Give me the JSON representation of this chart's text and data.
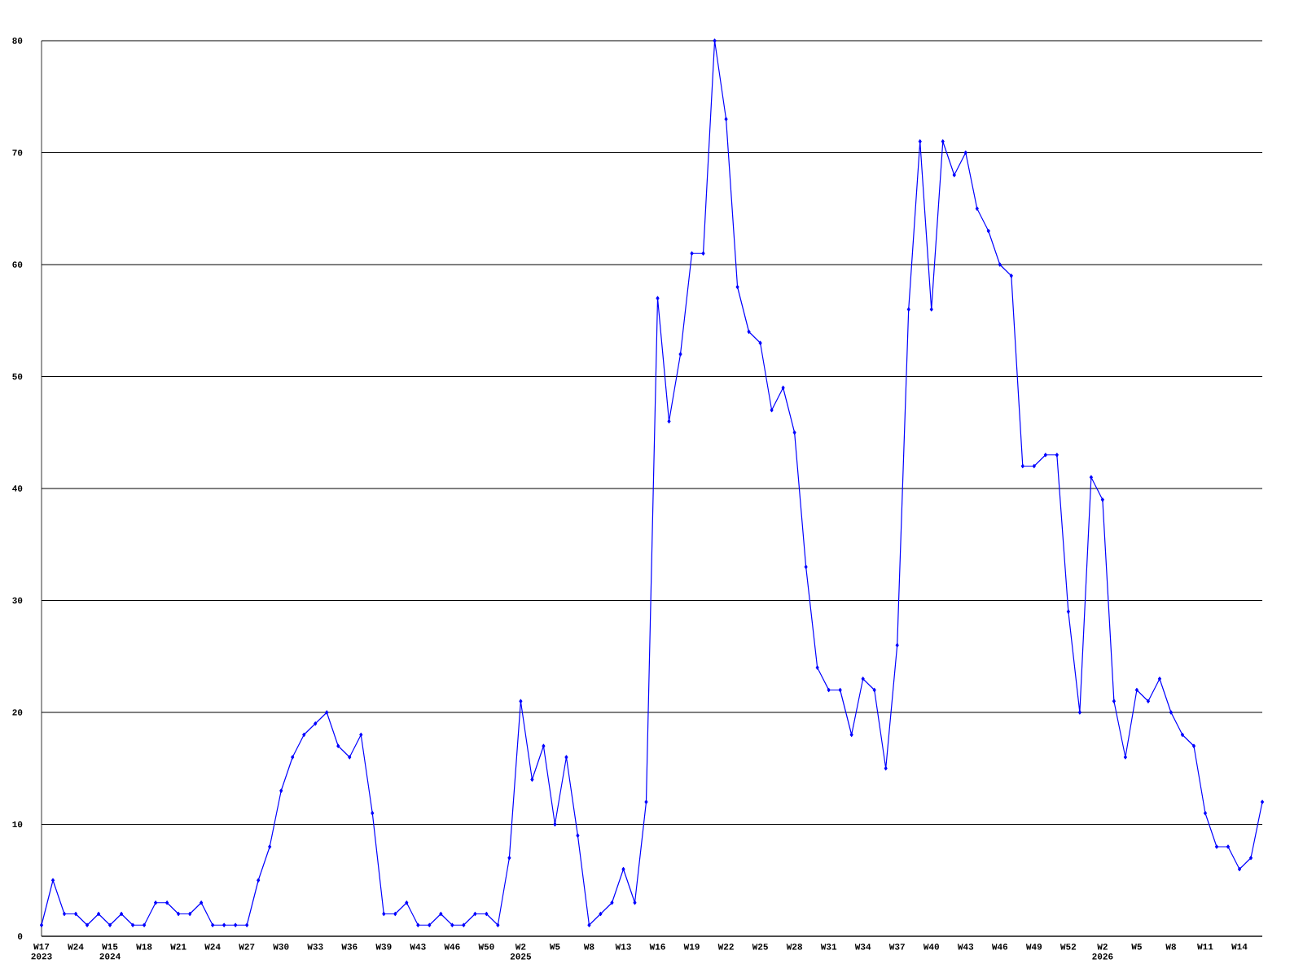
{
  "chart_data": {
    "type": "line",
    "color": "#0000ff",
    "marker": "diamond",
    "grid": "y",
    "categories": [
      "W17 2023",
      null,
      null,
      "W24",
      null,
      null,
      "W15 2024",
      null,
      null,
      "W18",
      null,
      null,
      "W21",
      null,
      null,
      "W24",
      null,
      null,
      "W27",
      null,
      null,
      "W30",
      null,
      null,
      "W33",
      null,
      null,
      "W36",
      null,
      null,
      "W39",
      null,
      null,
      "W43",
      null,
      null,
      "W46",
      null,
      null,
      "W50",
      null,
      null,
      "W2 2025",
      null,
      null,
      "W5",
      null,
      null,
      "W8",
      null,
      null,
      "W13",
      null,
      null,
      "W16",
      null,
      null,
      "W19",
      null,
      null,
      "W22",
      null,
      null,
      "W25",
      null,
      null,
      "W28",
      null,
      null,
      "W31",
      null,
      null,
      "W34",
      null,
      null,
      "W37",
      null,
      null,
      "W40",
      null,
      null,
      "W43",
      null,
      null,
      "W46",
      null,
      null,
      "W49",
      null,
      null,
      "W52",
      null,
      null,
      "W2 2026",
      null,
      null,
      "W5",
      null,
      null,
      "W8",
      null,
      null,
      "W11",
      null,
      null,
      "W14",
      null,
      null
    ],
    "values": [
      1,
      5,
      2,
      2,
      1,
      2,
      1,
      2,
      1,
      1,
      3,
      3,
      2,
      2,
      3,
      1,
      1,
      1,
      1,
      5,
      8,
      13,
      16,
      18,
      19,
      20,
      17,
      16,
      18,
      11,
      2,
      2,
      3,
      1,
      1,
      2,
      1,
      1,
      2,
      2,
      1,
      7,
      21,
      14,
      17,
      10,
      16,
      9,
      1,
      2,
      3,
      6,
      3,
      12,
      57,
      46,
      52,
      61,
      61,
      80,
      73,
      58,
      54,
      53,
      47,
      49,
      45,
      33,
      24,
      22,
      22,
      18,
      23,
      22,
      15,
      26,
      56,
      71,
      56,
      71,
      68,
      70,
      65,
      63,
      60,
      59,
      42,
      42,
      43,
      43,
      29,
      20,
      41,
      39,
      21,
      16,
      22,
      21,
      23,
      20,
      18,
      17,
      11,
      8,
      8,
      6,
      7,
      12
    ],
    "ylim": [
      0,
      80
    ],
    "yticks": [
      0,
      10,
      20,
      30,
      40,
      50,
      60,
      70,
      80
    ]
  }
}
